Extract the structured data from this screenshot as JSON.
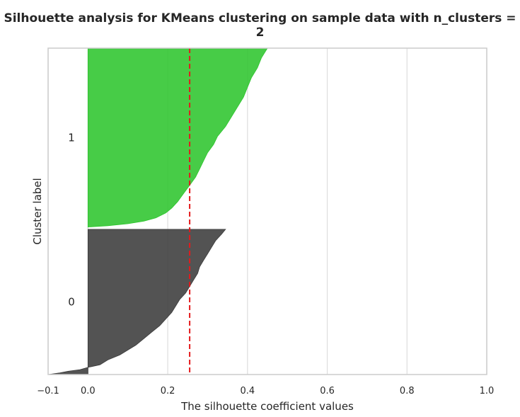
{
  "chart_data": {
    "type": "area",
    "title": "Silhouette analysis for KMeans clustering on sample data with n_clusters = 2",
    "xlabel": "The silhouette coefficient values",
    "ylabel": "Cluster label",
    "xlim": [
      -0.1,
      1.0
    ],
    "ylim": [
      0,
      100
    ],
    "xticks": [
      -0.1,
      0.0,
      0.2,
      0.4,
      0.6,
      0.8,
      1.0
    ],
    "xtick_labels": [
      "−0.1",
      "0.0",
      "0.2",
      "0.4",
      "0.6",
      "0.8",
      "1.0"
    ],
    "grid": true,
    "average_silhouette": 0.255,
    "clusters": [
      {
        "label": "0",
        "color": "#3b3b3b",
        "y_range": [
          0,
          44.5
        ],
        "profile": [
          [
            0,
            -0.1
          ],
          [
            0.5,
            -0.07
          ],
          [
            1.0,
            -0.05
          ],
          [
            1.5,
            -0.02
          ],
          [
            2.2,
            0.0
          ],
          [
            3.0,
            0.03
          ],
          [
            4.5,
            0.05
          ],
          [
            6.0,
            0.08
          ],
          [
            7.5,
            0.1
          ],
          [
            9.0,
            0.12
          ],
          [
            11.0,
            0.14
          ],
          [
            13.0,
            0.16
          ],
          [
            15.0,
            0.18
          ],
          [
            17.0,
            0.195
          ],
          [
            19.0,
            0.21
          ],
          [
            21.0,
            0.22
          ],
          [
            23.0,
            0.23
          ],
          [
            25.0,
            0.245
          ],
          [
            27.0,
            0.255
          ],
          [
            29.0,
            0.265
          ],
          [
            31.0,
            0.275
          ],
          [
            33.0,
            0.28
          ],
          [
            35.0,
            0.29
          ],
          [
            37.0,
            0.3
          ],
          [
            39.0,
            0.31
          ],
          [
            41.0,
            0.32
          ],
          [
            43.0,
            0.335
          ],
          [
            44.5,
            0.345
          ]
        ]
      },
      {
        "label": "1",
        "color": "#2dc52d",
        "y_range": [
          45.2,
          100
        ],
        "profile": [
          [
            45.2,
            0.0
          ],
          [
            45.6,
            0.05
          ],
          [
            46.2,
            0.1
          ],
          [
            47.0,
            0.14
          ],
          [
            48.0,
            0.17
          ],
          [
            49.5,
            0.195
          ],
          [
            51.0,
            0.21
          ],
          [
            53.0,
            0.225
          ],
          [
            55.5,
            0.24
          ],
          [
            58.0,
            0.255
          ],
          [
            60.5,
            0.27
          ],
          [
            63.0,
            0.28
          ],
          [
            65.5,
            0.29
          ],
          [
            68.0,
            0.3
          ],
          [
            70.5,
            0.315
          ],
          [
            73.0,
            0.325
          ],
          [
            76.0,
            0.345
          ],
          [
            79.0,
            0.36
          ],
          [
            82.0,
            0.375
          ],
          [
            85.0,
            0.39
          ],
          [
            88.0,
            0.4
          ],
          [
            91.0,
            0.41
          ],
          [
            94.0,
            0.425
          ],
          [
            97.0,
            0.435
          ],
          [
            99.0,
            0.445
          ],
          [
            100,
            0.45
          ]
        ]
      }
    ]
  }
}
